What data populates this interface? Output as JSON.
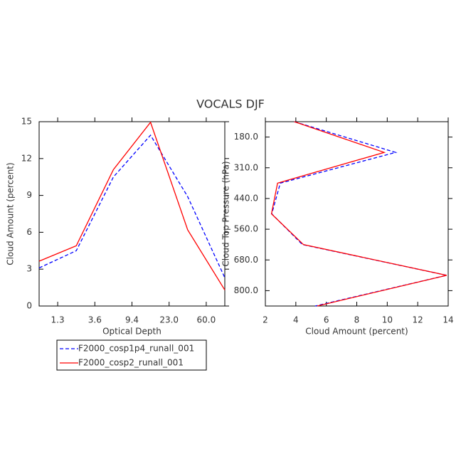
{
  "title": "VOCALS DJF",
  "chart_data": [
    {
      "type": "line",
      "orientation": "vertical",
      "xlabel": "Optical Depth",
      "ylabel": "Cloud Amount (percent)",
      "x": [
        0,
        1,
        2,
        3,
        4,
        5
      ],
      "xlim": [
        0,
        5
      ],
      "xticks": [
        {
          "value": 0.5,
          "label": "1.3"
        },
        {
          "value": 1.5,
          "label": "3.6"
        },
        {
          "value": 2.5,
          "label": "9.4"
        },
        {
          "value": 3.5,
          "label": "23.0"
        },
        {
          "value": 4.5,
          "label": "60.0"
        }
      ],
      "ylim": [
        0,
        15
      ],
      "yticks": [
        0,
        3,
        6,
        9,
        12,
        15
      ],
      "series": [
        {
          "name": "F2000_cosp1p4_runall_001",
          "color": "#0000ff",
          "dash": true,
          "values": [
            3.1,
            4.5,
            10.5,
            13.9,
            8.9,
            2.3
          ]
        },
        {
          "name": "F2000_cosp2_runall_001",
          "color": "#ff0000",
          "dash": false,
          "values": [
            3.65,
            4.9,
            11.1,
            14.95,
            6.2,
            1.3
          ]
        }
      ]
    },
    {
      "type": "line",
      "orientation": "horizontal",
      "xlabel": "Cloud Amount (percent)",
      "ylabel": "Cloud Top Pressure (hPa)",
      "y": [
        0,
        1,
        2,
        3,
        4,
        5,
        6
      ],
      "ylim": [
        0,
        6
      ],
      "yticks": [
        {
          "value": 0.5,
          "label": "180.0"
        },
        {
          "value": 1.5,
          "label": "310.0"
        },
        {
          "value": 2.5,
          "label": "440.0"
        },
        {
          "value": 3.5,
          "label": "560.0"
        },
        {
          "value": 4.5,
          "label": "680.0"
        },
        {
          "value": 5.5,
          "label": "800.0"
        }
      ],
      "xlim": [
        2,
        14
      ],
      "xticks": [
        2,
        4,
        6,
        8,
        10,
        12,
        14
      ],
      "series": [
        {
          "name": "F2000_cosp1p4_runall_001",
          "color": "#0000ff",
          "dash": true,
          "values": [
            3.9,
            10.55,
            2.98,
            2.42,
            4.43,
            13.9,
            5.27
          ]
        },
        {
          "name": "F2000_cosp2_runall_001",
          "color": "#ff0000",
          "dash": false,
          "values": [
            3.9,
            9.8,
            2.8,
            2.4,
            4.5,
            13.9,
            5.4
          ]
        }
      ]
    }
  ]
}
